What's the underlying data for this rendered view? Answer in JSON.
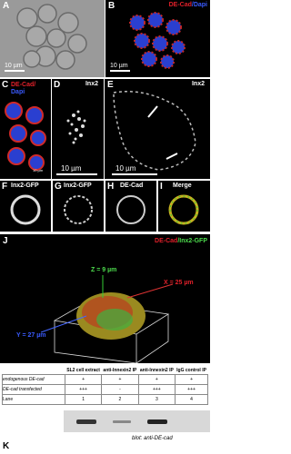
{
  "panels": {
    "A": {
      "label": "A",
      "scale": "10 µm"
    },
    "B": {
      "label": "B",
      "stain": [
        "DE-Cad",
        "/Dapi"
      ],
      "scale": "10 µm"
    },
    "C": {
      "label": "C",
      "stain": [
        "DE-Cad/",
        "Dapi"
      ],
      "scale": "10 µm"
    },
    "D": {
      "label": "D",
      "stain": "Inx2",
      "scale": "10 µm"
    },
    "E": {
      "label": "E",
      "stain": "Inx2",
      "scale": "10 µm"
    },
    "F": {
      "label": "F",
      "stain": "Inx2-GFP"
    },
    "G": {
      "label": "G",
      "stain": "Inx2-GFP"
    },
    "H": {
      "label": "H",
      "stain": "DE-Cad"
    },
    "I": {
      "label": "I",
      "stain": "Merge"
    },
    "J": {
      "label": "J",
      "stain": [
        "DE-Cad",
        "/Inx2-GFP"
      ],
      "z": "Z = 9 µm",
      "x": "X = 25 µm",
      "y": "Y = 27 µm"
    }
  },
  "table": {
    "columns": [
      "SL2 cell extract",
      "anti-Innexin2 IP",
      "anti-Innexin2 IP",
      "IgG control IP"
    ],
    "rows": [
      {
        "label": "endogenous DE-cad",
        "cells": [
          "+",
          "+",
          "+",
          "+"
        ]
      },
      {
        "label": "DE-cad transfected",
        "cells": [
          "+++",
          "-",
          "+++",
          "+++"
        ]
      },
      {
        "label": "Lane",
        "cells": [
          "1",
          "2",
          "3",
          "4"
        ]
      }
    ]
  },
  "blot_label": "blot: anti-DE-cad",
  "panel_K": "K"
}
